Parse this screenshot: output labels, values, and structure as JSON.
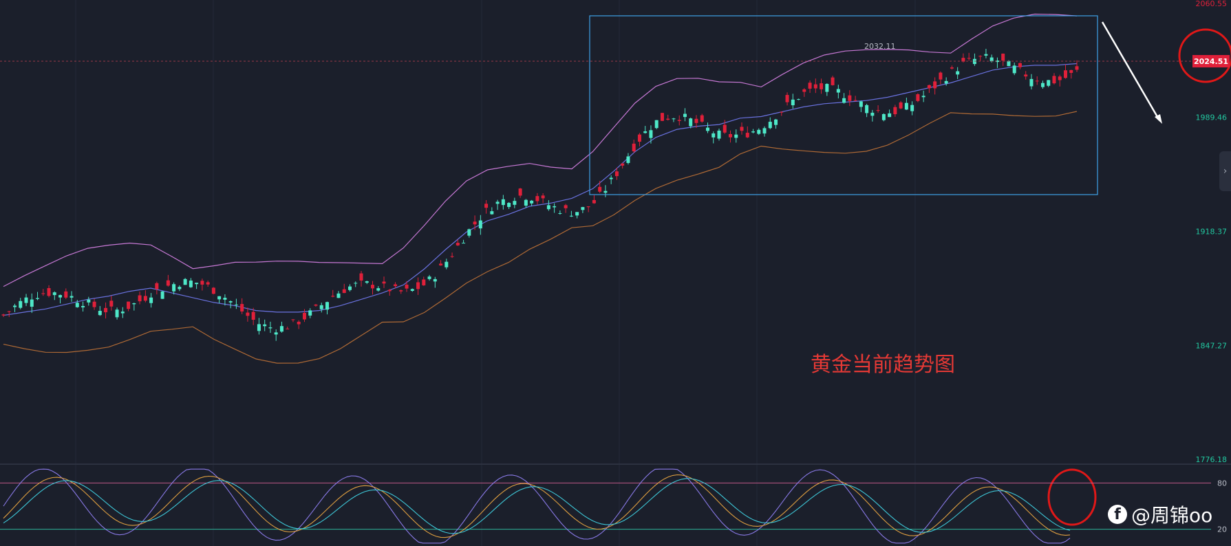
{
  "chart_data": [
    {
      "type": "candlestick",
      "title": "",
      "ylim": [
        1776.18,
        2060.55
      ],
      "y_ticks": [
        "2060.55",
        "1989.46",
        "1918.37",
        "1847.27",
        "1776.18"
      ],
      "current_price": "2024.51",
      "high_marker": "2032.11",
      "annotation": "黄金当前趋势图",
      "series": [
        {
          "name": "",
          "values": [
            1866,
            1868,
            1870,
            1873,
            1876,
            1878,
            1881,
            1883,
            1880,
            1877,
            1874,
            1872,
            1869,
            1868,
            1868,
            1869,
            1872,
            1876,
            1880,
            1885,
            1895,
            1907,
            1918,
            1925,
            1929,
            1934,
            1936,
            1939,
            1945,
            1956,
            1968,
            1977,
            1982,
            1984,
            1985,
            1989,
            1990,
            1993,
            1996,
            1998,
            1999,
            2000,
            2002,
            2005,
            2008,
            2011,
            2015,
            2019,
            2021,
            2022,
            2022,
            2023
          ]
        }
      ]
    },
    {
      "type": "line",
      "title": "",
      "ylim": [
        0,
        100
      ],
      "y_ticks": [
        "80",
        "20"
      ],
      "levels": [
        80,
        20
      ]
    }
  ],
  "watermark": {
    "logo": "f",
    "text": "@周锦oo"
  },
  "side_handle": "›"
}
